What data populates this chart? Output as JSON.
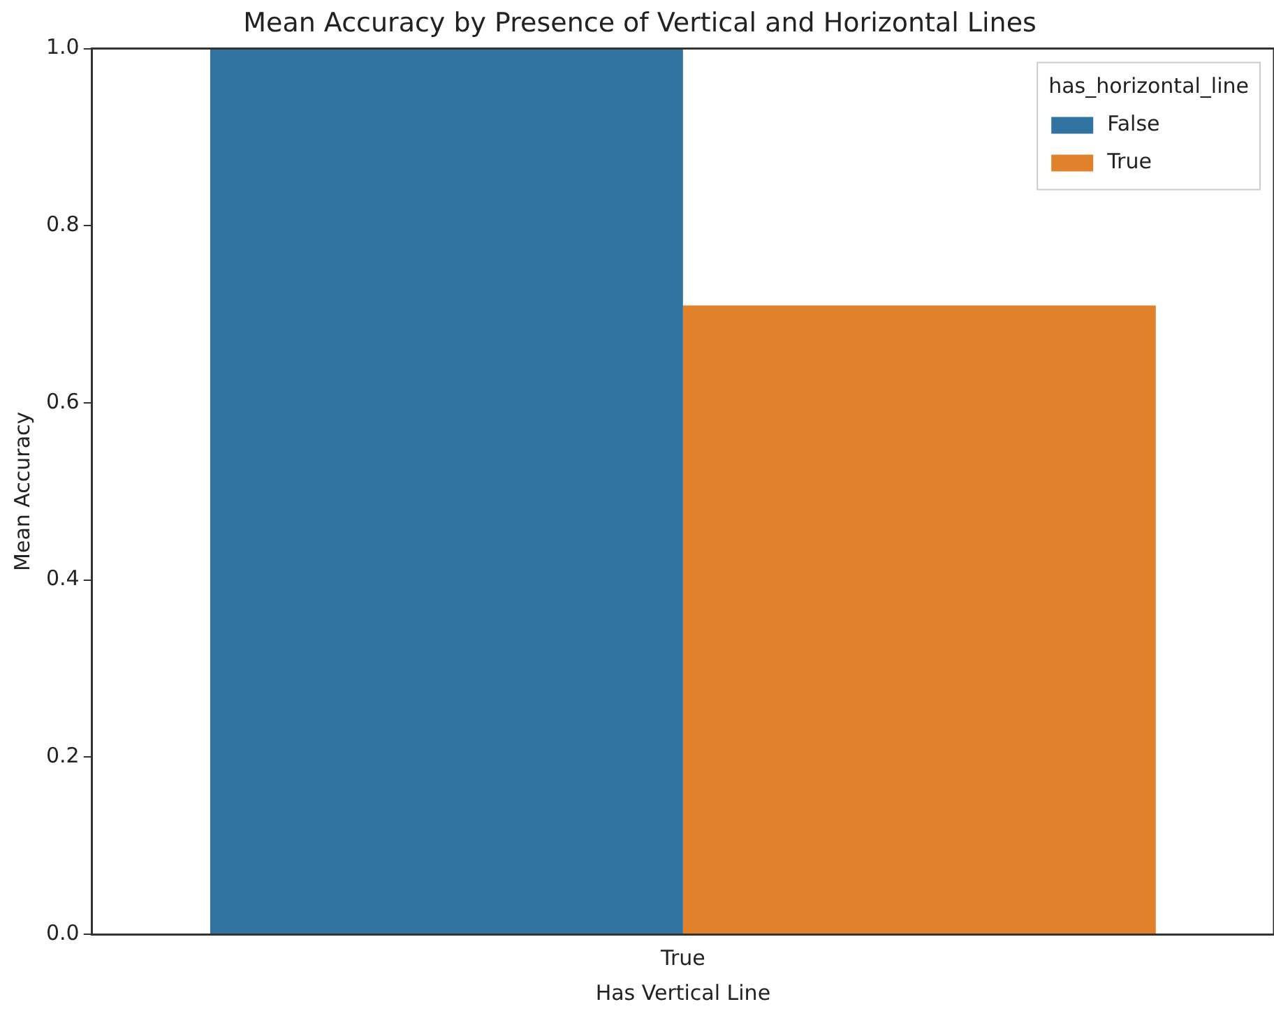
{
  "chart_data": {
    "type": "bar",
    "title": "Mean Accuracy by Presence of Vertical and Horizontal Lines",
    "xlabel": "Has Vertical Line",
    "ylabel": "Mean Accuracy",
    "legend_title": "has_horizontal_line",
    "categories": [
      "True"
    ],
    "series": [
      {
        "name": "False",
        "color": "#3274a1",
        "values": [
          1.0
        ]
      },
      {
        "name": "True",
        "color": "#e1812c",
        "values": [
          0.71
        ]
      }
    ],
    "ylim": [
      0,
      1
    ],
    "yticks": [
      {
        "value": 0,
        "label": "0.0"
      },
      0.2,
      0.4,
      0.6,
      0.8,
      {
        "value": 1,
        "label": "1.0"
      }
    ],
    "grid": false,
    "legend": "top right"
  }
}
